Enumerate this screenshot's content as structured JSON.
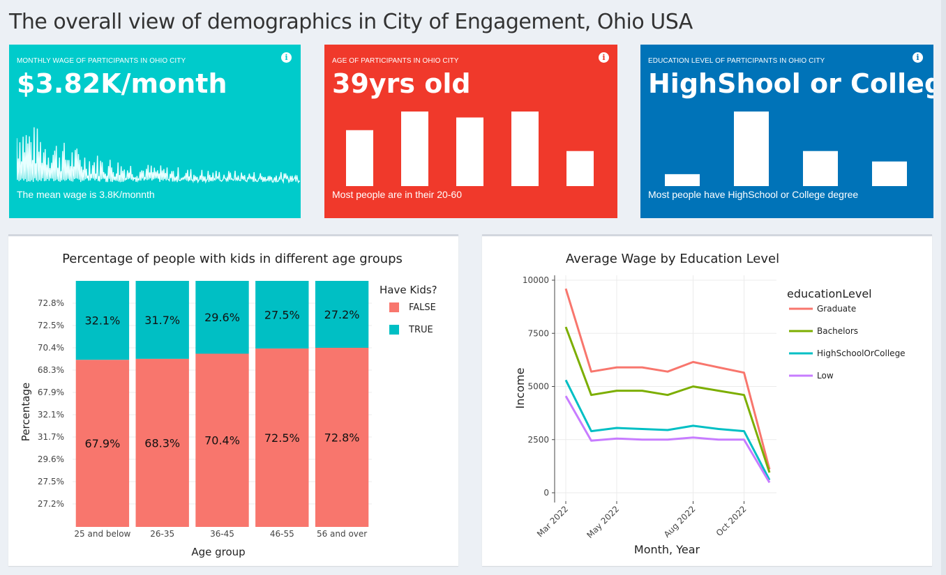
{
  "page": {
    "title": "The overall view of demographics in City of Engagement, Ohio USA"
  },
  "value_boxes": {
    "wage": {
      "subtitle": "MONTHLY WAGE OF PARTICIPANTS IN OHIO CITY",
      "value": "$3.82K/month",
      "note": "The mean wage is 3.8K/monnth",
      "info_icon": "info-circle-icon",
      "color": "#00cbcb"
    },
    "age": {
      "subtitle": "AGE OF PARTICIPANTS IN OHIO CITY",
      "value": "39yrs old",
      "note": "Most people are in their 20-60",
      "info_icon": "info-circle-icon",
      "color": "#f0392b",
      "spark_values": [
        0.75,
        1.0,
        0.92,
        1.0,
        0.47
      ]
    },
    "education": {
      "subtitle": "EDUCATION LEVEL OF PARTICIPANTS IN OHIO CITY",
      "value": "HighShool or College D",
      "note": "Most people have HighSchool or College degree",
      "info_icon": "info-circle-icon",
      "color": "#0073b8",
      "spark_values": [
        0.16,
        1.0,
        0.47,
        0.33
      ]
    }
  },
  "chart_data": [
    {
      "type": "bar",
      "stacked": true,
      "title": "Percentage of people with kids in different age groups",
      "xlabel": "Age group",
      "ylabel": "Percentage",
      "categories": [
        "25 and below",
        "26-35",
        "36-45",
        "46-55",
        "56 and over"
      ],
      "y_tick_labels": [
        "27.2%",
        "27.5%",
        "29.6%",
        "31.7%",
        "32.1%",
        "67.9%",
        "68.3%",
        "70.4%",
        "72.5%",
        "72.8%"
      ],
      "legend_title": "Have Kids?",
      "legend_position": "top-right",
      "series": [
        {
          "name": "FALSE",
          "color": "#f8766d",
          "values": [
            67.9,
            68.3,
            70.4,
            72.5,
            72.8
          ],
          "labels": [
            "67.9%",
            "68.3%",
            "70.4%",
            "72.5%",
            "72.8%"
          ]
        },
        {
          "name": "TRUE",
          "color": "#00bfc4",
          "values": [
            32.1,
            31.7,
            29.6,
            27.5,
            27.2
          ],
          "labels": [
            "32.1%",
            "31.7%",
            "29.6%",
            "27.5%",
            "27.2%"
          ]
        }
      ]
    },
    {
      "type": "line",
      "title": "Average Wage by Education Level",
      "xlabel": "Month, Year",
      "ylabel": "Income",
      "x": [
        "2022-03",
        "2022-04",
        "2022-05",
        "2022-06",
        "2022-07",
        "2022-08",
        "2022-09",
        "2022-10",
        "2022-11"
      ],
      "x_tick_labels": [
        "Mar 2022",
        "May 2022",
        "Aug 2022",
        "Oct 2022"
      ],
      "y_ticks": [
        0,
        2500,
        5000,
        7500,
        10000
      ],
      "y_tick_labels": [
        "0",
        "2500",
        "5000",
        "7500",
        "10000"
      ],
      "ylim": [
        0,
        10000
      ],
      "grid": true,
      "legend_title": "educationLevel",
      "legend_position": "top-right",
      "series": [
        {
          "name": "Graduate",
          "color": "#f8766d",
          "values": [
            9600,
            5700,
            5900,
            5900,
            5700,
            6150,
            5900,
            5650,
            1100
          ]
        },
        {
          "name": "Bachelors",
          "color": "#7cae00",
          "values": [
            7800,
            4600,
            4800,
            4800,
            4600,
            5000,
            4800,
            4600,
            950
          ]
        },
        {
          "name": "HighSchoolOrCollege",
          "color": "#00bfc4",
          "values": [
            5300,
            2900,
            3050,
            3000,
            2950,
            3150,
            3000,
            2900,
            600
          ]
        },
        {
          "name": "Low",
          "color": "#c77cff",
          "values": [
            4550,
            2450,
            2550,
            2500,
            2500,
            2600,
            2500,
            2500,
            480
          ]
        }
      ]
    }
  ]
}
